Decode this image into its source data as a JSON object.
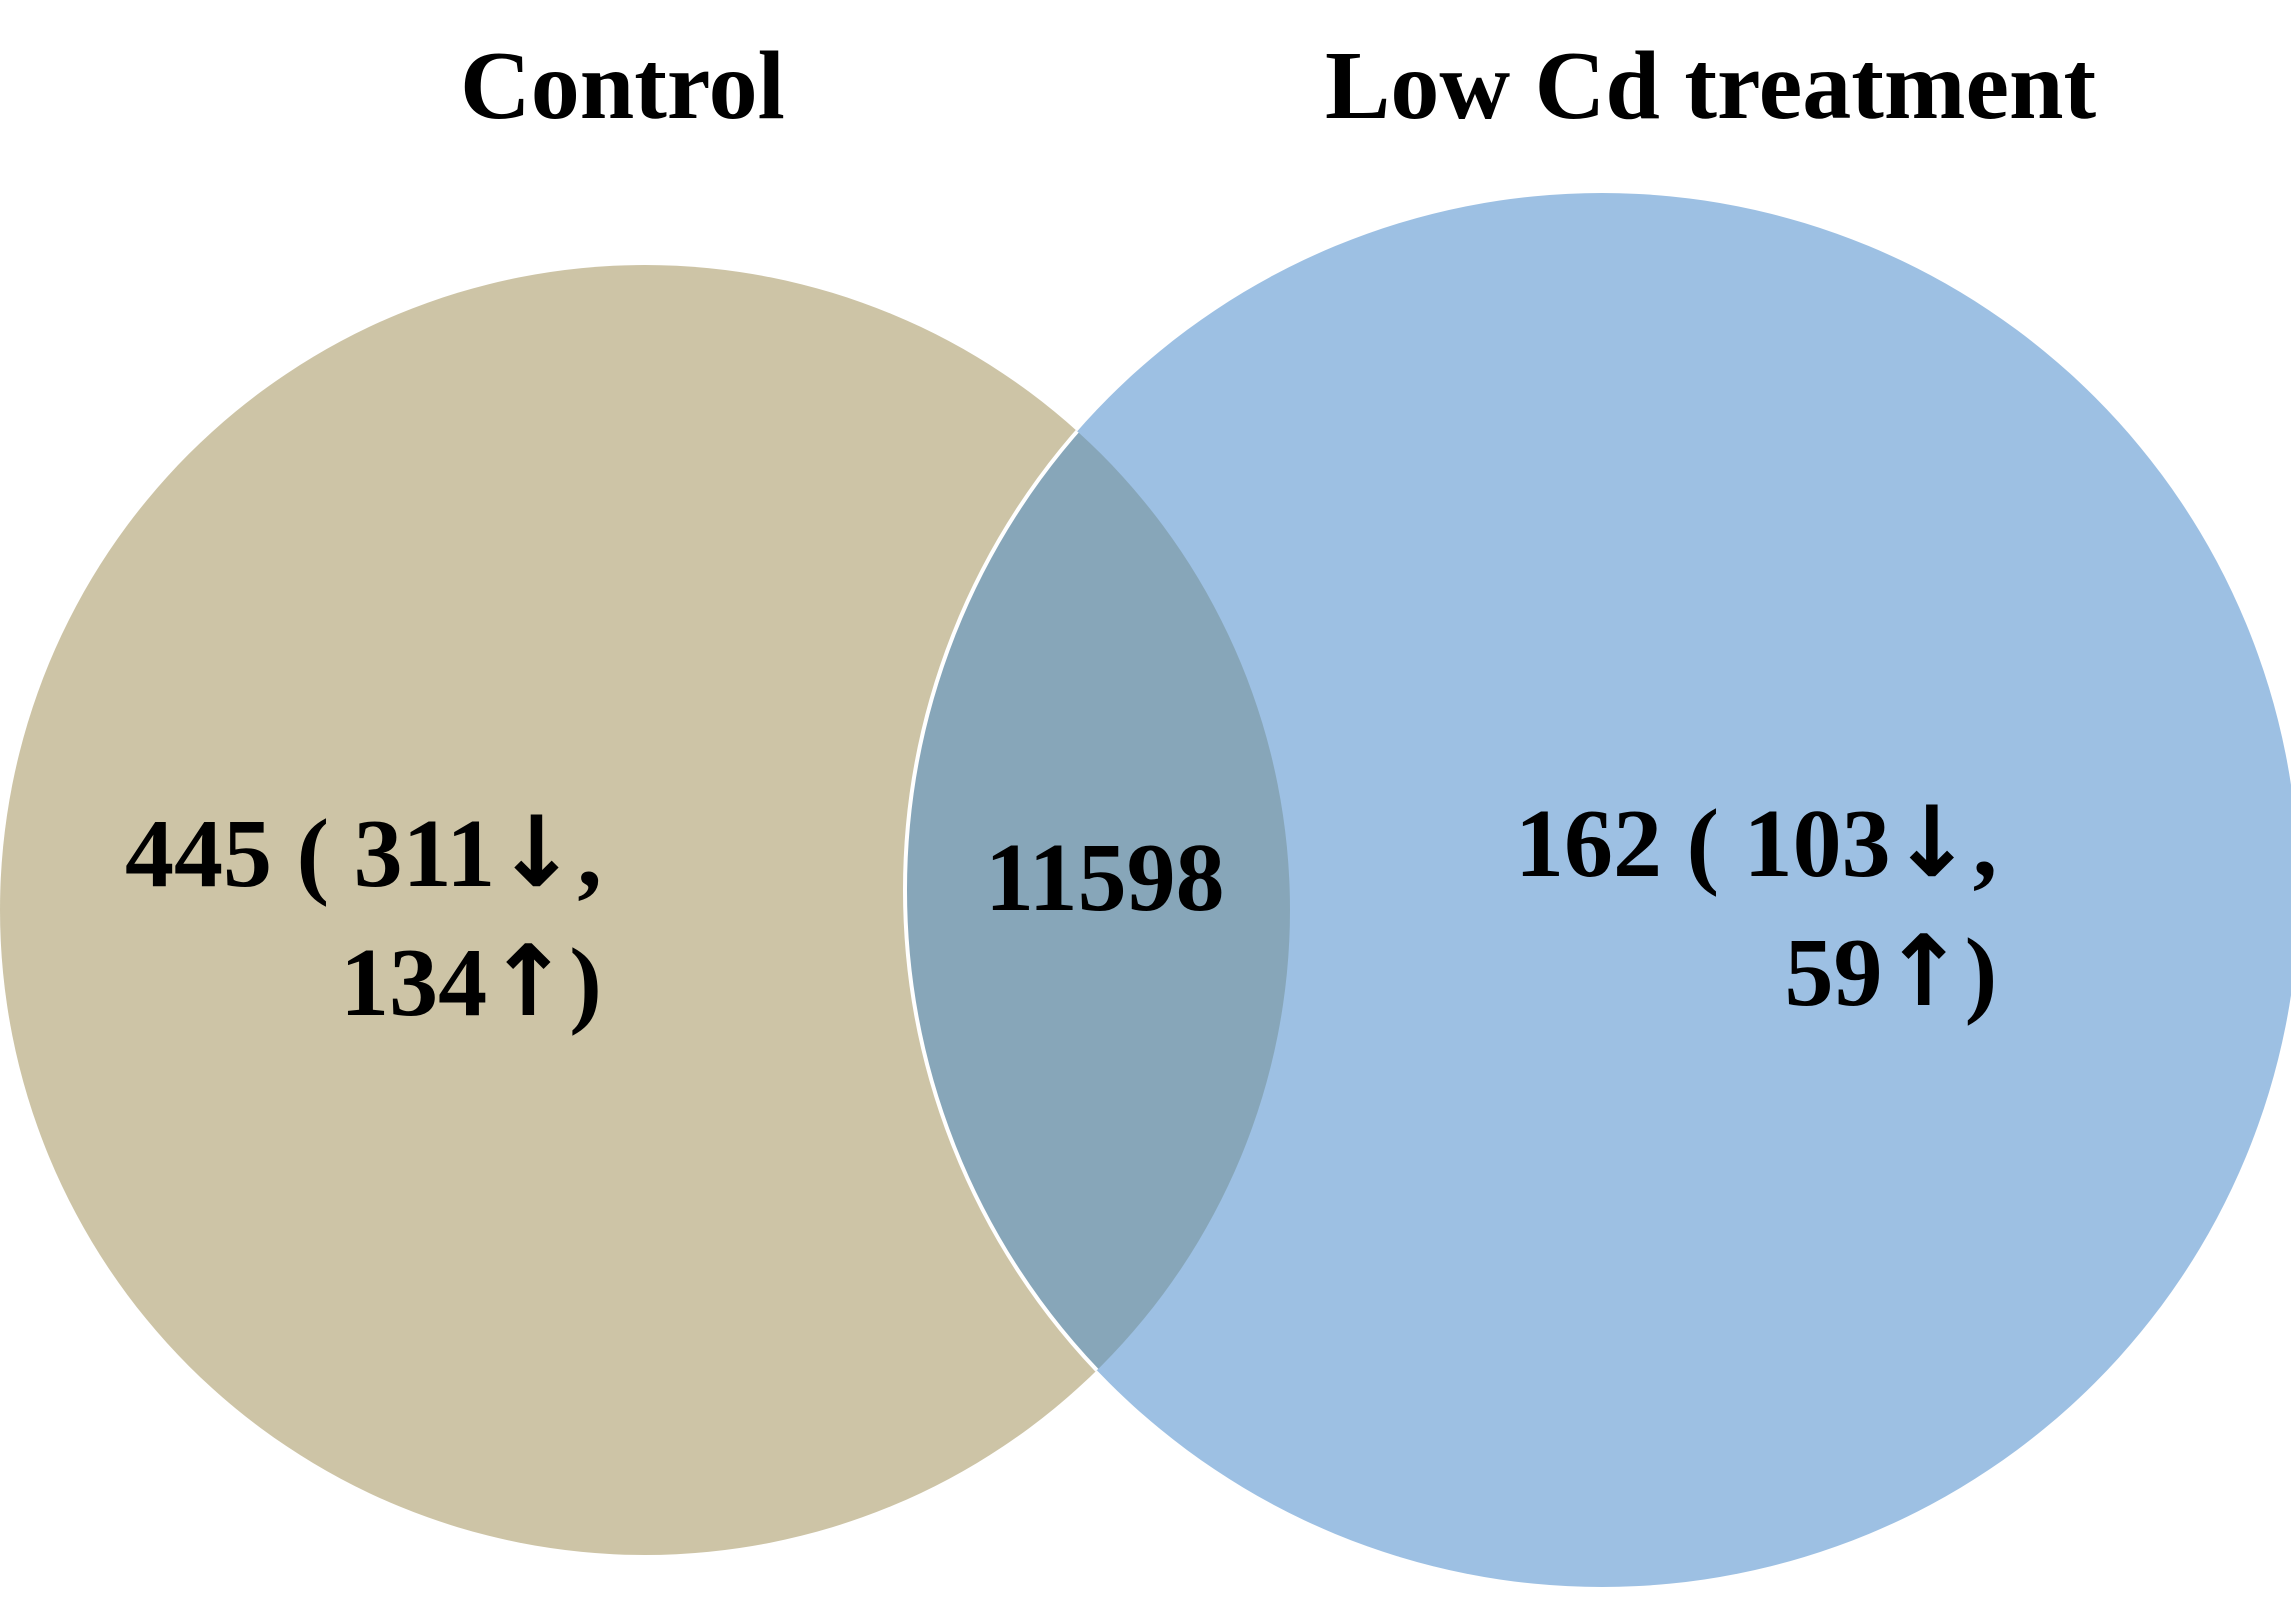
{
  "diagram": {
    "type": "venn",
    "colors": {
      "left_set": "#cdc4a6",
      "right_set": "#9dc0e3",
      "overlap": "#87a6b9",
      "overlap_border": "#ffffff"
    },
    "sets": [
      {
        "name": "Control"
      },
      {
        "name": "Low Cd treatment"
      }
    ],
    "regions": {
      "left_only": {
        "total": "445",
        "down": "311",
        "up": "134",
        "line1_prefix": "445 ( 311",
        "line1_suffix": ",",
        "line2_prefix": "134",
        "line2_suffix": ")"
      },
      "overlap": {
        "total": "11598"
      },
      "right_only": {
        "total": "162",
        "down": "103",
        "up": "59",
        "line1_prefix": "162 ( 103",
        "line1_suffix": ",",
        "line2_prefix": "59",
        "line2_suffix": ")"
      }
    },
    "symbols": {
      "down_arrow": "↓",
      "up_arrow": "↑"
    }
  }
}
